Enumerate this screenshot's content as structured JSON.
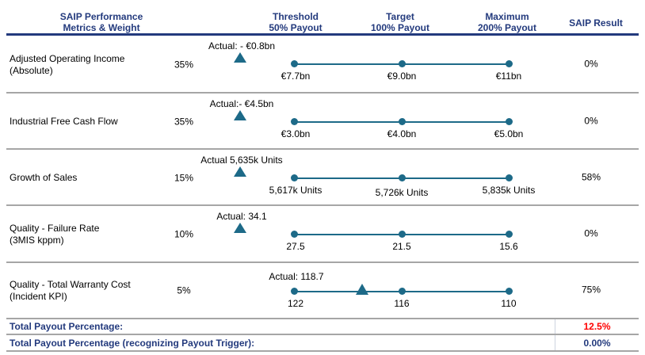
{
  "header": {
    "col_metric_l1": "SAIP Performance",
    "col_metric_l2": "Metrics & Weight",
    "col_threshold_l1": "Threshold",
    "col_threshold_l2": "50% Payout",
    "col_target_l1": "Target",
    "col_target_l2": "100% Payout",
    "col_max_l1": "Maximum",
    "col_max_l2": "200% Payout",
    "col_result": "SAIP Result"
  },
  "metrics": [
    {
      "name_l1": "Adjusted Operating Income",
      "name_l2": "(Absolute)",
      "weight": "35%",
      "actual": "Actual: - €0.8bn",
      "threshold": "€7.7bn",
      "target": "€9.0bn",
      "maximum": "€11bn",
      "result": "0%"
    },
    {
      "name_l1": "Industrial Free Cash Flow",
      "name_l2": "",
      "weight": "35%",
      "actual": "Actual:- €4.5bn",
      "threshold": "€3.0bn",
      "target": "€4.0bn",
      "maximum": "€5.0bn",
      "result": "0%"
    },
    {
      "name_l1": "Growth of Sales",
      "name_l2": "",
      "weight": "15%",
      "actual": "Actual 5,635k Units",
      "threshold": "5,617k Units",
      "target": "5,726k Units",
      "maximum": "5,835k Units",
      "result": "58%"
    },
    {
      "name_l1": "Quality - Failure Rate",
      "name_l2": "(3MIS kppm)",
      "weight": "10%",
      "actual": "Actual: 34.1",
      "threshold": "27.5",
      "target": "21.5",
      "maximum": "15.6",
      "result": "0%"
    },
    {
      "name_l1": "Quality - Total Warranty Cost",
      "name_l2": "(Incident KPI)",
      "weight": "5%",
      "actual": "Actual: 118.7",
      "threshold": "122",
      "target": "116",
      "maximum": "110",
      "result": "75%"
    }
  ],
  "totals": [
    {
      "label": "Total Payout Percentage:",
      "value": "12.5%"
    },
    {
      "label": "Total Payout Percentage (recognizing Payout Trigger):",
      "value": "0.00%"
    }
  ],
  "colors": {
    "navy_text": "#233A7D",
    "teal_marker": "#1D6A88",
    "separator_gray": "#A6A6A6",
    "total_value_red": "#FF0000"
  },
  "chart_data": {
    "type": "table",
    "title": "SAIP Performance Metrics & Weight",
    "columns": [
      "SAIP Performance Metrics & Weight",
      "Weight",
      "Actual",
      "Threshold 50% Payout",
      "Target 100% Payout",
      "Maximum 200% Payout",
      "SAIP Result"
    ],
    "rows": [
      {
        "metric": "Adjusted Operating Income (Absolute)",
        "weight_pct": 35,
        "actual": -0.8,
        "threshold": 7.7,
        "target": 9.0,
        "maximum": 11,
        "unit": "€bn",
        "result_pct": 0
      },
      {
        "metric": "Industrial Free Cash Flow",
        "weight_pct": 35,
        "actual": -4.5,
        "threshold": 3.0,
        "target": 4.0,
        "maximum": 5.0,
        "unit": "€bn",
        "result_pct": 0
      },
      {
        "metric": "Growth of Sales",
        "weight_pct": 15,
        "actual": 5635,
        "threshold": 5617,
        "target": 5726,
        "maximum": 5835,
        "unit": "k Units",
        "result_pct": 58
      },
      {
        "metric": "Quality - Failure Rate (3MIS kppm)",
        "weight_pct": 10,
        "actual": 34.1,
        "threshold": 27.5,
        "target": 21.5,
        "maximum": 15.6,
        "unit": "kppm",
        "result_pct": 0
      },
      {
        "metric": "Quality - Total Warranty Cost (Incident KPI)",
        "weight_pct": 5,
        "actual": 118.7,
        "threshold": 122,
        "target": 116,
        "maximum": 110,
        "unit": "",
        "result_pct": 75
      }
    ],
    "legend_position": "none",
    "grid": false,
    "totals": {
      "total_payout_pct": 12.5,
      "total_payout_recognizing_trigger_pct": 0.0
    }
  }
}
